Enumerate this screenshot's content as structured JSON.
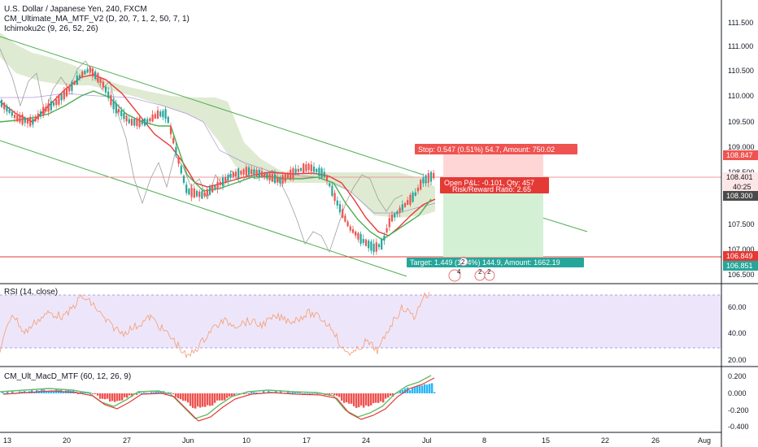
{
  "legend": {
    "symbol": "U.S. Dollar / Japanese Yen, 240, FXCM",
    "ma_indicator": "CM_Ultimate_MA_MTF_V2 (D, 20, 7, 1, 2, 50, 7, 1)",
    "ichimoku": "Ichimoku2c (9, 26, 52, 26)",
    "rsi": "RSI (14, close)",
    "macd": "CM_Ult_MacD_MTF (60, 12, 26, 9)"
  },
  "price_axis": {
    "ticks": [
      "111.500",
      "111.000",
      "110.500",
      "110.000",
      "109.500",
      "109.000",
      "108.500",
      "107.500",
      "107.000",
      "106.500"
    ],
    "tags": {
      "stop": "108.847",
      "current": "108.401",
      "countdown": "40:25",
      "entry": "108.300",
      "red_line": "106.849",
      "target": "106.851"
    }
  },
  "rsi_axis": {
    "ticks": [
      "60.00",
      "40.00",
      "20.00"
    ]
  },
  "macd_axis": {
    "ticks": [
      "0.200",
      "0.000",
      "-0.200",
      "-0.400"
    ]
  },
  "time_axis": {
    "labels": [
      "13",
      "20",
      "27",
      "Jun",
      "10",
      "17",
      "24",
      "Jul",
      "8",
      "15",
      "22",
      "26",
      "Aug"
    ]
  },
  "position": {
    "stop_label": "Stop: 0.547 (0.51%) 54.7, Amount: 750.02",
    "pnl_label": "Open P&L: -0.101, Qty: 457",
    "rr_label": "Risk/Reward Ratio: 2.65",
    "target_label": "Target: 1.449 (1.34%) 144.9, Amount: 1662.19"
  },
  "events": {
    "count_1": "2",
    "count_2": "4",
    "count_3": "2",
    "count_4": "2"
  },
  "colors": {
    "bull": "#26a69a",
    "bear": "#ef5350",
    "channel": "#4caf50",
    "cloud": "#b7cf9f",
    "rsi_band": "#ede6fb",
    "rsi_line": "#f7a07a",
    "stop_zone": "#ffd6d6",
    "target_zone": "#d3f0d4"
  }
}
